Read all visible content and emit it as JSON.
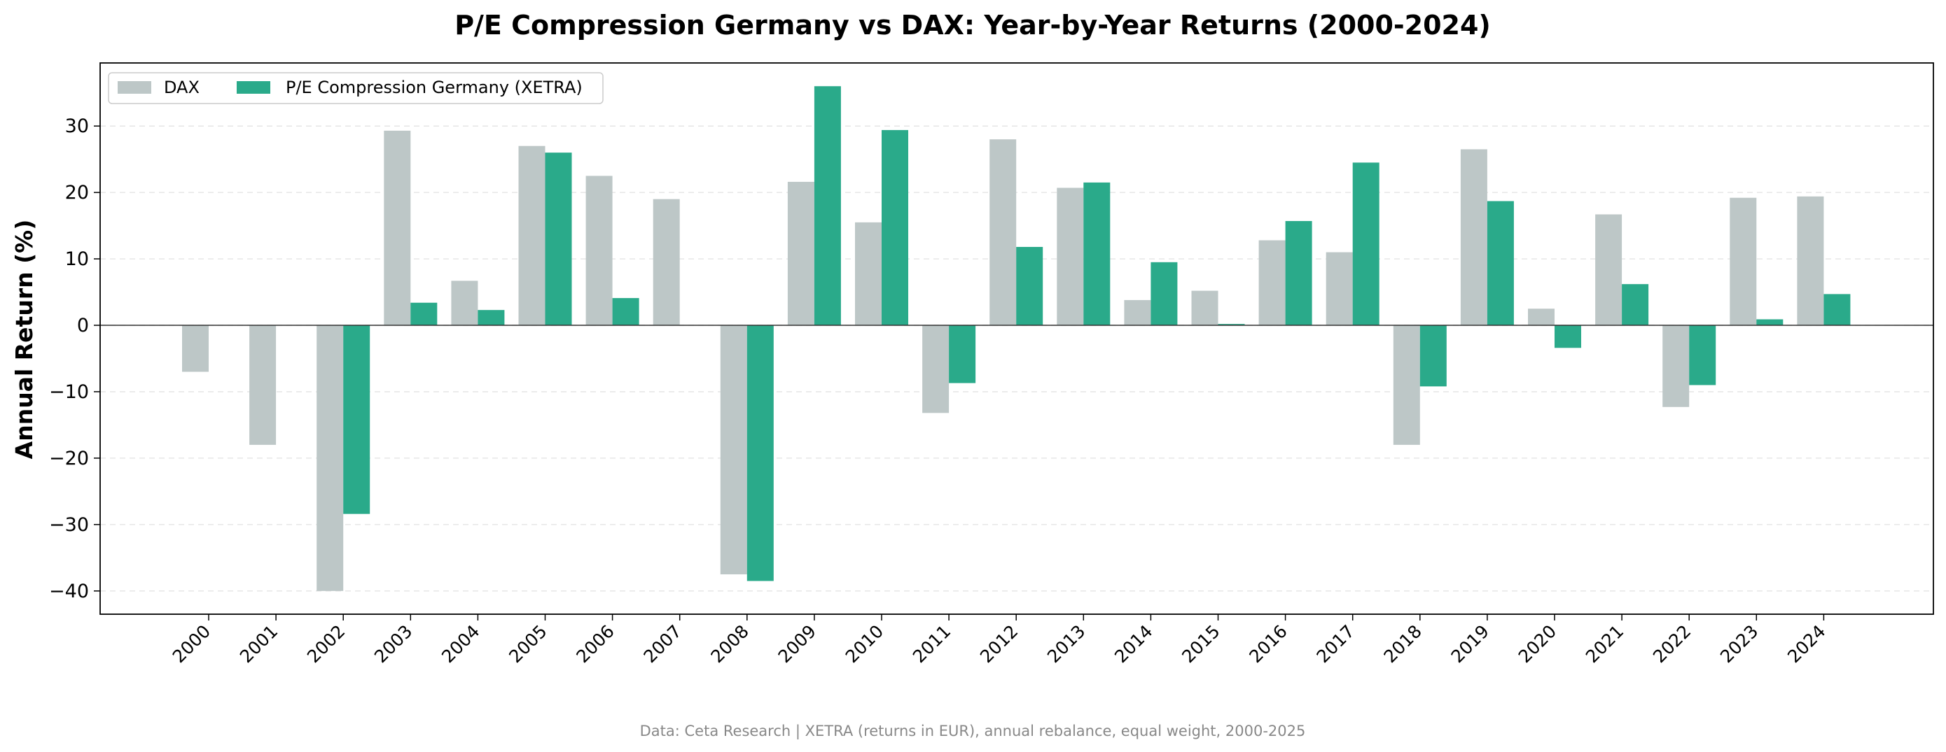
{
  "chart_data": {
    "type": "bar",
    "title": "P/E Compression Germany vs DAX: Year-by-Year Returns (2000-2024)",
    "ylabel": "Annual Return (%)",
    "xlabel": "",
    "ylim": [
      -43.5,
      39.5
    ],
    "yticks": [
      -40,
      -30,
      -20,
      -10,
      0,
      10,
      20,
      30
    ],
    "grid": "y-dashed",
    "legend_position": "top-left",
    "categories": [
      "2000",
      "2001",
      "2002",
      "2003",
      "2004",
      "2005",
      "2006",
      "2007",
      "2008",
      "2009",
      "2010",
      "2011",
      "2012",
      "2013",
      "2014",
      "2015",
      "2016",
      "2017",
      "2018",
      "2019",
      "2020",
      "2021",
      "2022",
      "2023",
      "2024"
    ],
    "series": [
      {
        "name": "DAX",
        "color": "#bdc7c7",
        "values": [
          -7.0,
          -18.0,
          -40.0,
          29.3,
          6.7,
          27.0,
          22.5,
          19.0,
          -37.5,
          21.6,
          15.5,
          -13.2,
          28.0,
          20.7,
          3.8,
          5.2,
          12.8,
          11.0,
          -18.0,
          26.5,
          2.5,
          16.7,
          -12.3,
          19.2,
          19.4
        ]
      },
      {
        "name": "P/E Compression Germany (XETRA)",
        "color": "#2aaa8a",
        "values": [
          null,
          null,
          -28.4,
          3.4,
          2.3,
          26.0,
          4.1,
          null,
          -38.5,
          36.0,
          29.4,
          -8.7,
          11.8,
          21.5,
          9.5,
          0.2,
          15.7,
          24.5,
          -9.2,
          18.7,
          -3.4,
          6.2,
          -9.0,
          0.9,
          4.7
        ]
      }
    ],
    "footer": "Data: Ceta Research | XETRA (returns in EUR), annual rebalance, equal weight, 2000-2025"
  }
}
